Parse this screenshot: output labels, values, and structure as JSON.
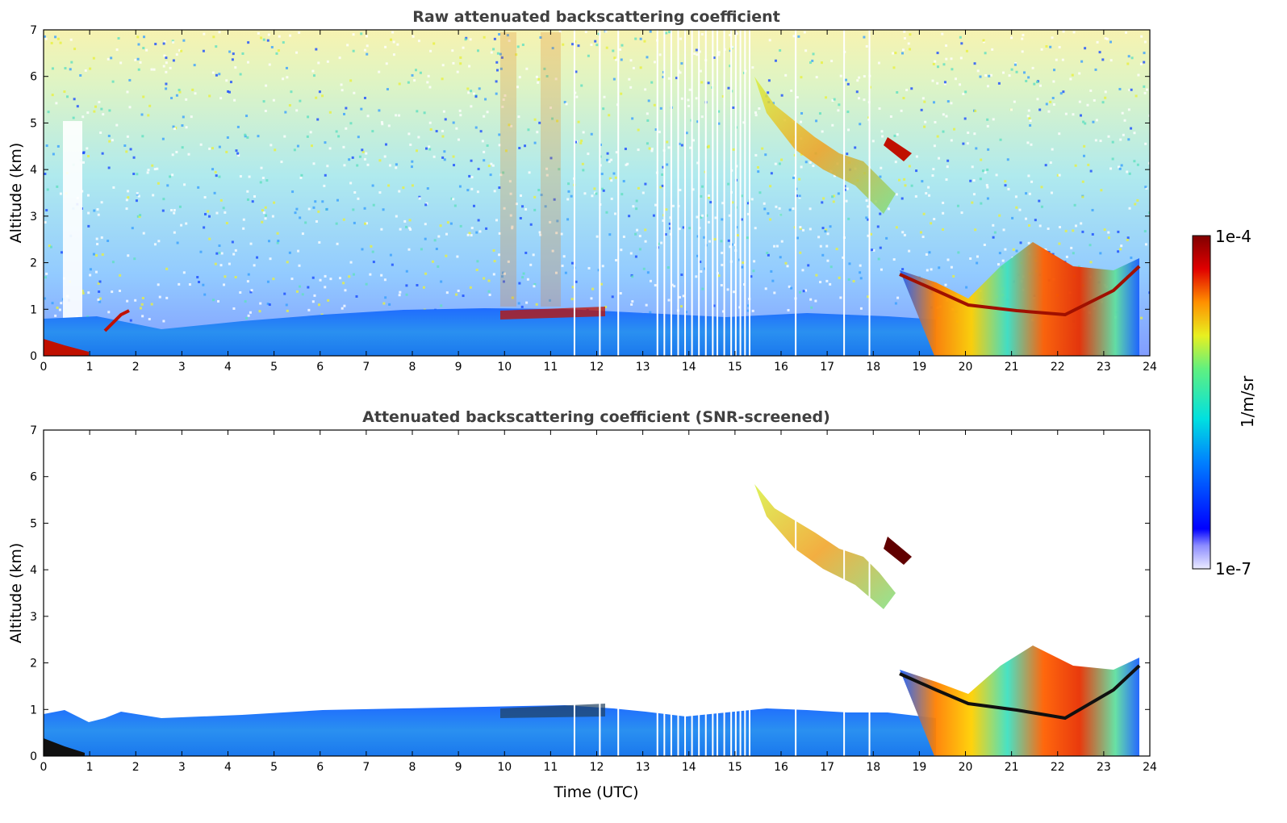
{
  "chart_data": [
    {
      "type": "heatmap",
      "title": "Raw attenuated backscattering coefficient",
      "xlabel": "",
      "ylabel": "Altitude (km)",
      "xlim": [
        0,
        24
      ],
      "ylim": [
        0,
        7
      ],
      "xticks": [
        "0",
        "1",
        "2",
        "3",
        "4",
        "5",
        "6",
        "7",
        "8",
        "9",
        "10",
        "11",
        "12",
        "13",
        "14",
        "15",
        "16",
        "17",
        "18",
        "19",
        "20",
        "21",
        "22",
        "23",
        "24"
      ],
      "yticks": [
        "0",
        "1",
        "2",
        "3",
        "4",
        "5",
        "6",
        "7"
      ],
      "features": [
        {
          "name": "boundary-layer",
          "x": [
            0,
            19.4
          ],
          "y": [
            0,
            0.95
          ],
          "level": "low"
        },
        {
          "name": "cloud-layer-high",
          "x": [
            15.3,
            18.8
          ],
          "y": [
            3.1,
            5.9
          ],
          "level": "medium"
        },
        {
          "name": "low-cloud-and-precip",
          "x": [
            19.0,
            23.8
          ],
          "y": [
            0,
            2.1
          ],
          "level": "high"
        },
        {
          "name": "noise-aloft",
          "x": [
            0,
            24
          ],
          "y": [
            1,
            7
          ],
          "level": "noisy"
        }
      ]
    },
    {
      "type": "heatmap",
      "title": "Attenuated backscattering coefficient (SNR-screened)",
      "xlabel": "Time (UTC)",
      "ylabel": "Altitude (km)",
      "xlim": [
        0,
        24
      ],
      "ylim": [
        0,
        7
      ],
      "xticks": [
        "0",
        "1",
        "2",
        "3",
        "4",
        "5",
        "6",
        "7",
        "8",
        "9",
        "10",
        "11",
        "12",
        "13",
        "14",
        "15",
        "16",
        "17",
        "18",
        "19",
        "20",
        "21",
        "22",
        "23",
        "24"
      ],
      "yticks": [
        "0",
        "1",
        "2",
        "3",
        "4",
        "5",
        "6",
        "7"
      ],
      "features": [
        {
          "name": "boundary-layer",
          "x": [
            0,
            19.4
          ],
          "y": [
            0,
            1.0
          ],
          "level": "low"
        },
        {
          "name": "cloud-layer-high",
          "x": [
            15.4,
            18.8
          ],
          "y": [
            3.1,
            5.9
          ],
          "level": "medium"
        },
        {
          "name": "low-cloud-and-precip",
          "x": [
            19.0,
            23.8
          ],
          "y": [
            0,
            2.1
          ],
          "level": "high"
        }
      ]
    }
  ],
  "colorbar": {
    "max_label": "1e-4",
    "min_label": "1e-7",
    "unit_label": "1/m/sr"
  }
}
